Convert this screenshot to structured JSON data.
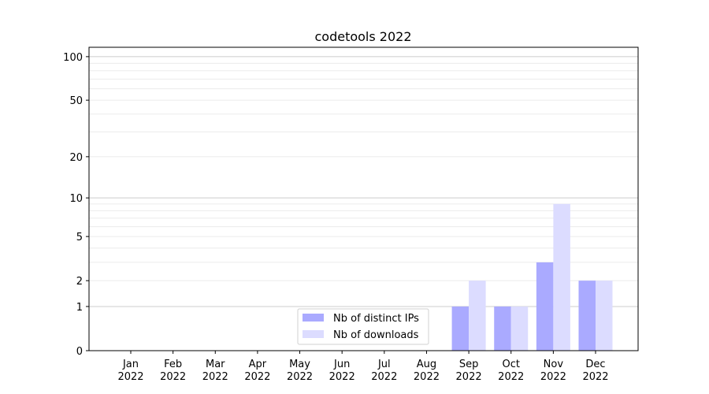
{
  "chart_data": {
    "type": "bar",
    "title": "codetools 2022",
    "xlabel": "",
    "ylabel": "",
    "yscale": "symlog (log10(1+y))",
    "ylim": [
      0,
      116
    ],
    "yticks": [
      0,
      1,
      2,
      5,
      10,
      20,
      50,
      100
    ],
    "grid": true,
    "legend_placement": "bottom-center",
    "categories": [
      "Jan\n2022",
      "Feb\n2022",
      "Mar\n2022",
      "Apr\n2022",
      "May\n2022",
      "Jun\n2022",
      "Jul\n2022",
      "Aug\n2022",
      "Sep\n2022",
      "Oct\n2022",
      "Nov\n2022",
      "Dec\n2022"
    ],
    "series": [
      {
        "name": "Nb of distinct IPs",
        "color": "#aaaaff",
        "values": [
          0,
          0,
          0,
          0,
          0,
          0,
          0,
          0,
          1,
          1,
          3,
          2
        ]
      },
      {
        "name": "Nb of downloads",
        "color": "#dcdcff",
        "values": [
          0,
          0,
          0,
          0,
          0,
          0,
          0,
          0,
          2,
          1,
          9,
          2
        ]
      }
    ]
  }
}
